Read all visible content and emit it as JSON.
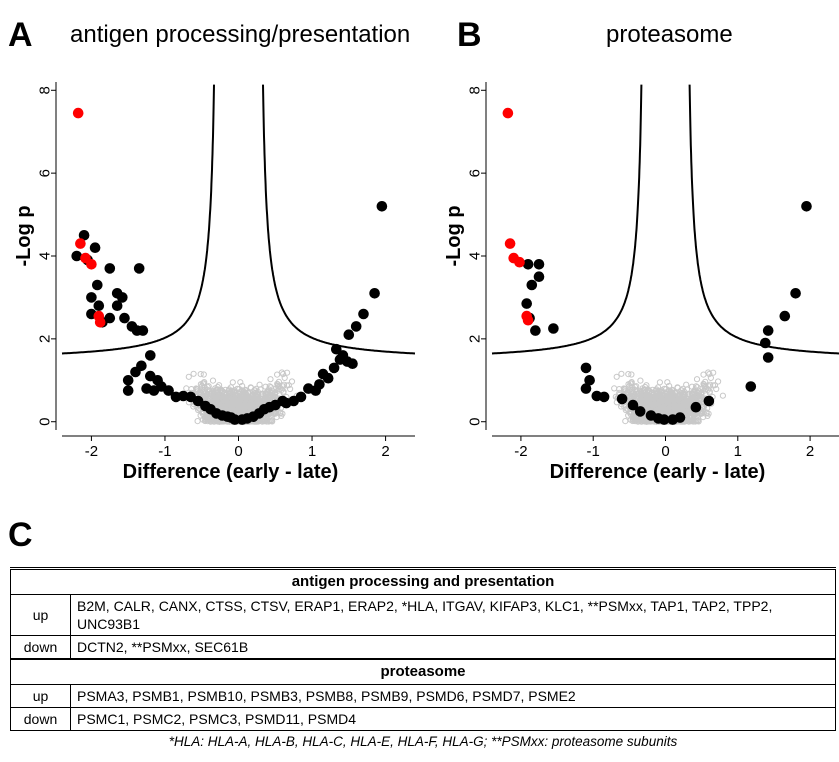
{
  "panels": [
    {
      "letter": "A",
      "title": "antigen processing/presentation"
    },
    {
      "letter": "B",
      "title": "proteasome"
    }
  ],
  "panel_c_letter": "C",
  "chart_data": [
    {
      "type": "scatter",
      "title": "antigen processing/presentation",
      "xlabel": "Difference (early - late)",
      "ylabel": "-Log p",
      "xlim": [
        -2.4,
        2.4
      ],
      "ylim": [
        -0.2,
        8.2
      ],
      "xticks": [
        -2,
        -1,
        0,
        1,
        2
      ],
      "yticks": [
        0,
        2,
        4,
        6,
        8
      ],
      "colors": {
        "background": "#c8c8c8",
        "highlight": "#000000",
        "red": "#ff0000",
        "curve": "#000000"
      },
      "series": [
        {
          "color": "black",
          "points": [
            [
              1.95,
              5.2
            ],
            [
              1.85,
              3.1
            ],
            [
              1.7,
              2.6
            ],
            [
              1.6,
              2.3
            ],
            [
              1.5,
              2.1
            ],
            [
              1.42,
              1.6
            ],
            [
              1.33,
              1.75
            ],
            [
              1.38,
              1.5
            ],
            [
              1.48,
              1.45
            ],
            [
              1.55,
              1.4
            ],
            [
              1.3,
              1.3
            ],
            [
              1.22,
              1.05
            ],
            [
              1.1,
              0.9
            ],
            [
              1.15,
              1.15
            ],
            [
              1.05,
              0.75
            ],
            [
              0.95,
              0.8
            ],
            [
              0.85,
              0.6
            ],
            [
              0.75,
              0.5
            ],
            [
              0.65,
              0.45
            ],
            [
              0.6,
              0.5
            ],
            [
              0.5,
              0.4
            ],
            [
              0.42,
              0.35
            ],
            [
              0.35,
              0.3
            ],
            [
              0.28,
              0.2
            ],
            [
              0.2,
              0.12
            ],
            [
              0.12,
              0.08
            ],
            [
              0.05,
              0.05
            ],
            [
              -0.05,
              0.05
            ],
            [
              -0.1,
              0.1
            ],
            [
              -0.15,
              0.12
            ],
            [
              -0.22,
              0.15
            ],
            [
              -0.3,
              0.2
            ],
            [
              -0.38,
              0.3
            ],
            [
              -0.45,
              0.38
            ],
            [
              -0.55,
              0.5
            ],
            [
              -0.65,
              0.6
            ],
            [
              -0.75,
              0.62
            ],
            [
              -0.85,
              0.6
            ],
            [
              -0.95,
              0.75
            ],
            [
              -1.05,
              0.85
            ],
            [
              -1.1,
              1.0
            ],
            [
              -1.15,
              0.75
            ],
            [
              -1.2,
              1.1
            ],
            [
              -1.25,
              0.8
            ],
            [
              -1.32,
              1.35
            ],
            [
              -1.4,
              1.2
            ],
            [
              -1.2,
              1.6
            ],
            [
              -1.3,
              2.2
            ],
            [
              -1.38,
              2.2
            ],
            [
              -1.45,
              2.3
            ],
            [
              -1.55,
              2.5
            ],
            [
              -1.65,
              2.8
            ],
            [
              -1.75,
              2.5
            ],
            [
              -1.85,
              2.4
            ],
            [
              -1.9,
              2.8
            ],
            [
              -2.0,
              3.0
            ],
            [
              -1.92,
              3.3
            ],
            [
              -1.95,
              4.2
            ],
            [
              -2.05,
              3.9
            ],
            [
              -2.1,
              4.5
            ],
            [
              -2.2,
              4.0
            ],
            [
              -1.75,
              3.7
            ],
            [
              -1.65,
              3.1
            ],
            [
              -1.58,
              3.0
            ],
            [
              -1.35,
              3.7
            ],
            [
              -1.5,
              0.75
            ],
            [
              -1.5,
              1.0
            ],
            [
              -2.0,
              2.6
            ]
          ]
        },
        {
          "color": "red",
          "points": [
            [
              -2.18,
              7.45
            ],
            [
              -2.15,
              4.3
            ],
            [
              -2.08,
              3.95
            ],
            [
              -2.0,
              3.8
            ],
            [
              -1.9,
              2.55
            ],
            [
              -1.88,
              2.4
            ]
          ]
        }
      ]
    },
    {
      "type": "scatter",
      "title": "proteasome",
      "xlabel": "Difference (early - late)",
      "ylabel": "-Log p",
      "xlim": [
        -2.4,
        2.4
      ],
      "ylim": [
        -0.2,
        8.2
      ],
      "xticks": [
        -2,
        -1,
        0,
        1,
        2
      ],
      "yticks": [
        0,
        2,
        4,
        6,
        8
      ],
      "colors": {
        "background": "#c8c8c8",
        "highlight": "#000000",
        "red": "#ff0000",
        "curve": "#000000"
      },
      "series": [
        {
          "color": "black",
          "points": [
            [
              1.95,
              5.2
            ],
            [
              1.8,
              3.1
            ],
            [
              1.65,
              2.55
            ],
            [
              1.42,
              2.2
            ],
            [
              1.38,
              1.9
            ],
            [
              1.42,
              1.55
            ],
            [
              1.18,
              0.85
            ],
            [
              0.6,
              0.5
            ],
            [
              0.42,
              0.35
            ],
            [
              0.2,
              0.1
            ],
            [
              0.1,
              0.05
            ],
            [
              -0.02,
              0.05
            ],
            [
              -0.1,
              0.08
            ],
            [
              -0.2,
              0.15
            ],
            [
              -0.35,
              0.25
            ],
            [
              -0.45,
              0.4
            ],
            [
              -0.6,
              0.55
            ],
            [
              -0.85,
              0.6
            ],
            [
              -0.95,
              0.62
            ],
            [
              -1.05,
              1.0
            ],
            [
              -1.1,
              0.8
            ],
            [
              -1.1,
              1.3
            ],
            [
              -1.55,
              2.25
            ],
            [
              -1.8,
              2.2
            ],
            [
              -1.88,
              2.5
            ],
            [
              -1.92,
              2.85
            ],
            [
              -1.85,
              3.3
            ],
            [
              -1.75,
              3.5
            ],
            [
              -1.75,
              3.8
            ],
            [
              -1.9,
              3.8
            ]
          ]
        },
        {
          "color": "red",
          "points": [
            [
              -2.18,
              7.45
            ],
            [
              -2.15,
              4.3
            ],
            [
              -2.1,
              3.95
            ],
            [
              -2.02,
              3.85
            ],
            [
              -1.92,
              2.55
            ],
            [
              -1.9,
              2.45
            ]
          ]
        }
      ]
    }
  ],
  "table": {
    "sections": [
      {
        "heading": "antigen processing and presentation",
        "up": "B2M, CALR, CANX, CTSS, CTSV, ERAP1, ERAP2, *HLA, ITGAV, KIFAP3, KLC1, **PSMxx, TAP1, TAP2, TPP2, UNC93B1",
        "down": "DCTN2, **PSMxx, SEC61B"
      },
      {
        "heading": "proteasome",
        "up": "PSMA3, PSMB1, PSMB10, PSMB3, PSMB8, PSMB9, PSMD6, PSMD7, PSME2",
        "down": "PSMC1, PSMC2, PSMC3, PSMD11, PSMD4"
      }
    ],
    "up_label": "up",
    "down_label": "down",
    "footnote": "*HLA: HLA-A, HLA-B, HLA-C, HLA-E, HLA-F, HLA-G; **PSMxx: proteasome subunits"
  }
}
